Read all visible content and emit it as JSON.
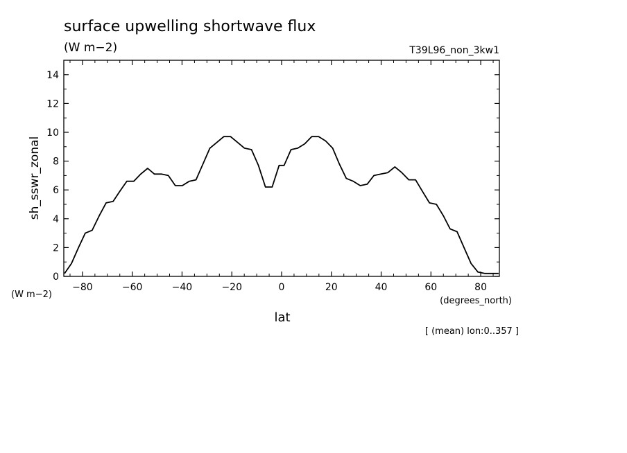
{
  "chart_data": {
    "type": "line",
    "title": "surface upwelling shortwave flux",
    "units": "(W m−2)",
    "experiment": "T39L96_non_3kw1",
    "ylabel": "sh_sswr_zonal",
    "ylabel_units": "(W m−2)",
    "xlabel": "lat",
    "xlabel_units": "(degrees_north)",
    "footnote": "[ (mean) lon:0..357 ]",
    "xlim": [
      -87.5,
      87.5
    ],
    "ylim": [
      0,
      15
    ],
    "xticks": [
      -80,
      -60,
      -40,
      -20,
      0,
      20,
      40,
      60,
      80
    ],
    "xtick_labels": [
      "−80",
      "−60",
      "−40",
      "−20",
      "0",
      "20",
      "40",
      "60",
      "80"
    ],
    "yticks": [
      0,
      2,
      4,
      6,
      8,
      10,
      12,
      14
    ],
    "ytick_labels": [
      "0",
      "2",
      "4",
      "6",
      "8",
      "10",
      "12",
      "14"
    ],
    "grid": false,
    "series": [
      {
        "x": [
          -87.2,
          -84.4,
          -81.6,
          -78.9,
          -76.1,
          -73.3,
          -70.5,
          -67.7,
          -65.0,
          -62.2,
          -59.4,
          -56.6,
          -53.8,
          -51.1,
          -48.3,
          -45.5,
          -42.7,
          -39.9,
          -37.1,
          -34.4,
          -31.6,
          -28.8,
          -26.0,
          -23.2,
          -20.5,
          -17.7,
          -14.9,
          -12.1,
          -9.3,
          -6.5,
          -3.8,
          -1.0,
          1.0,
          3.8,
          6.5,
          9.3,
          12.1,
          14.9,
          17.7,
          20.5,
          23.2,
          26.0,
          28.8,
          31.6,
          34.4,
          37.1,
          39.9,
          42.7,
          45.5,
          48.3,
          51.1,
          53.8,
          56.6,
          59.4,
          62.2,
          65.0,
          67.7,
          70.5,
          73.3,
          76.1,
          78.9,
          81.6,
          84.4,
          87.2
        ],
        "y": [
          0.2,
          0.9,
          2.0,
          3.0,
          3.2,
          4.2,
          5.1,
          5.2,
          5.9,
          6.6,
          6.6,
          7.1,
          7.5,
          7.1,
          7.1,
          7.0,
          6.3,
          6.3,
          6.6,
          6.7,
          7.8,
          8.9,
          9.3,
          9.7,
          9.7,
          9.3,
          8.9,
          8.8,
          7.7,
          6.2,
          6.2,
          7.7,
          7.7,
          8.8,
          8.9,
          9.2,
          9.7,
          9.7,
          9.4,
          8.9,
          7.8,
          6.8,
          6.6,
          6.3,
          6.4,
          7.0,
          7.1,
          7.2,
          7.6,
          7.2,
          6.7,
          6.7,
          5.9,
          5.1,
          5.0,
          4.2,
          3.3,
          3.1,
          2.0,
          0.9,
          0.3,
          0.2,
          0.2,
          0.2
        ]
      }
    ]
  }
}
